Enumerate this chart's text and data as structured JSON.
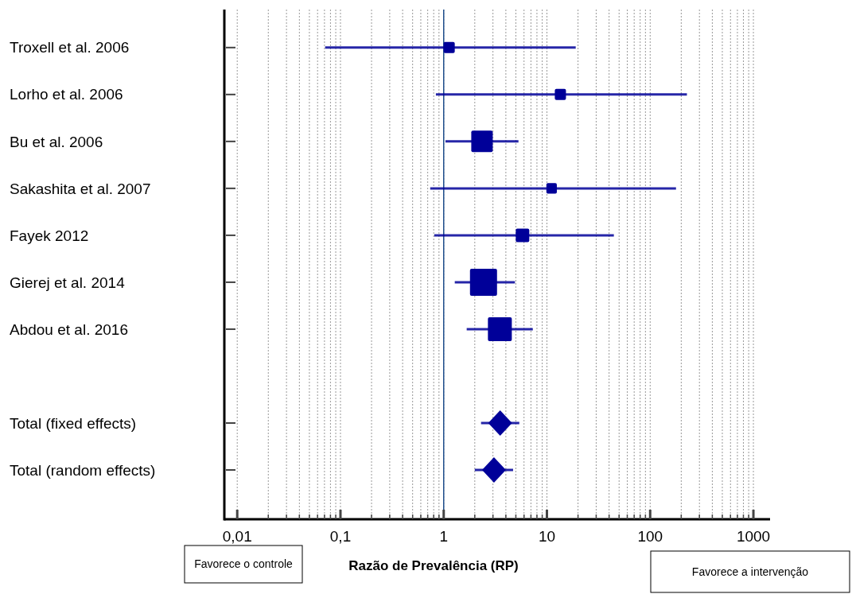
{
  "chart_data": {
    "type": "scatter",
    "orientation": "horizontal",
    "xlabel": "Razão de Prevalência (RP)",
    "categories": [
      "Troxell et al. 2006",
      "Lorho et al. 2006",
      "Bu et al. 2006",
      "Sakashita et al. 2007",
      "Fayek 2012",
      "Gierej et al. 2014",
      "Abdou et al. 2016",
      null,
      "Total (fixed effects)",
      "Total (random effects)"
    ],
    "series": [
      {
        "type": "scatter",
        "marker": "square",
        "color": "#000099",
        "values": [
          1.13,
          13.5,
          2.35,
          11.1,
          5.8,
          2.43,
          3.5,
          null,
          null,
          null
        ],
        "errors": [
          [
            0.071,
            19
          ],
          [
            0.84,
            227
          ],
          [
            1.04,
            5.3
          ],
          [
            0.74,
            178
          ],
          [
            0.81,
            44.5
          ],
          [
            1.28,
            4.9
          ],
          [
            1.67,
            7.3
          ],
          null,
          null,
          null
        ],
        "sizes": [
          0.17,
          0.17,
          0.63,
          0.15,
          0.25,
          1,
          0.78,
          null,
          null,
          null
        ]
      },
      {
        "type": "scatter",
        "marker": "diamond",
        "color": "#000099",
        "values": [
          null,
          null,
          null,
          null,
          null,
          null,
          null,
          null,
          3.52,
          3.07
        ],
        "errors": [
          null,
          null,
          null,
          null,
          null,
          null,
          null,
          null,
          [
            2.3,
            5.4
          ],
          [
            2.0,
            4.7
          ]
        ]
      }
    ],
    "log": "x",
    "xlim": [
      0.0075,
      1450
    ],
    "xticks": [
      {
        "value": 0.01,
        "label": "0,01"
      },
      {
        "value": 0.02,
        "label": null
      },
      {
        "value": 0.03,
        "label": null
      },
      {
        "value": 0.04,
        "label": null
      },
      {
        "value": 0.05,
        "label": null
      },
      {
        "value": 0.06,
        "label": null
      },
      {
        "value": 0.07,
        "label": null
      },
      {
        "value": 0.08,
        "label": null
      },
      {
        "value": 0.09,
        "label": null
      },
      {
        "value": 0.1,
        "label": "0,1"
      },
      {
        "value": 0.2,
        "label": null
      },
      {
        "value": 0.3,
        "label": null
      },
      {
        "value": 0.4,
        "label": null
      },
      {
        "value": 0.5,
        "label": null
      },
      {
        "value": 0.6,
        "label": null
      },
      {
        "value": 0.7,
        "label": null
      },
      {
        "value": 0.8,
        "label": null
      },
      {
        "value": 0.9,
        "label": null
      },
      1,
      {
        "value": 2,
        "label": null
      },
      {
        "value": 3,
        "label": null
      },
      {
        "value": 4,
        "label": null
      },
      {
        "value": 5,
        "label": null
      },
      {
        "value": 6,
        "label": null
      },
      {
        "value": 7,
        "label": null
      },
      {
        "value": 8,
        "label": null
      },
      {
        "value": 9,
        "label": null
      },
      10,
      {
        "value": 20,
        "label": null
      },
      {
        "value": 30,
        "label": null
      },
      {
        "value": 40,
        "label": null
      },
      {
        "value": 50,
        "label": null
      },
      {
        "value": 60,
        "label": null
      },
      {
        "value": 70,
        "label": null
      },
      {
        "value": 80,
        "label": null
      },
      {
        "value": 90,
        "label": null
      },
      100,
      {
        "value": 200,
        "label": null
      },
      {
        "value": 300,
        "label": null
      },
      {
        "value": 400,
        "label": null
      },
      {
        "value": 500,
        "label": null
      },
      {
        "value": 600,
        "label": null
      },
      {
        "value": 700,
        "label": null
      },
      {
        "value": 800,
        "label": null
      },
      {
        "value": 900,
        "label": null
      },
      1000
    ],
    "grid": "x",
    "ref_lines": [
      {
        "axis": "x",
        "value": 1,
        "color": "#1f4e8c"
      }
    ],
    "annotations": [
      "Favorece o controle",
      "Favorece a intervenção"
    ]
  }
}
